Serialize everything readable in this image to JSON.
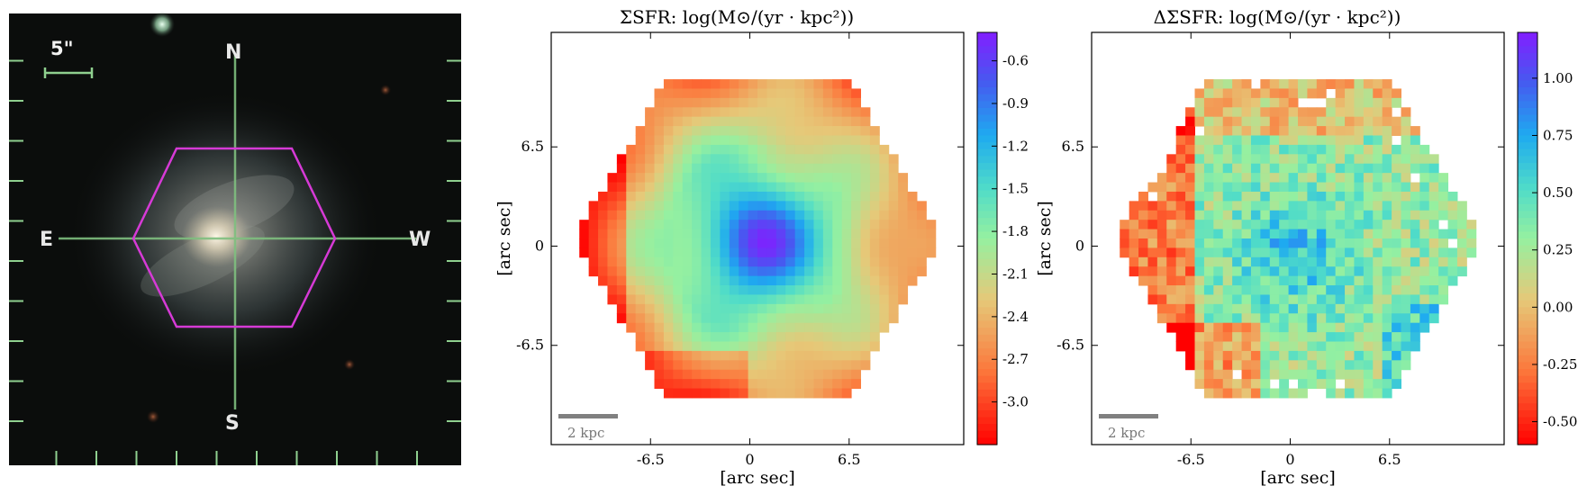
{
  "sky_image": {
    "scale_label": "5\"",
    "compass": {
      "north": "N",
      "south": "S",
      "east": "E",
      "west": "W"
    },
    "colors": {
      "hexagon": "#d63ad6",
      "crosshair": "#7fbf7f",
      "ticks": "#8fd08f"
    }
  },
  "maps": [
    {
      "title": "ΣSFR: log(M⊙/(yr · kpc²))",
      "colorbar_ticks": [
        "-0.6",
        "-0.9",
        "-1.2",
        "-1.5",
        "-1.8",
        "-2.1",
        "-2.4",
        "-2.7",
        "-3.0"
      ],
      "scale_bar_label": "2 kpc"
    },
    {
      "title": "ΔΣSFR: log(M⊙/(yr · kpc²))",
      "colorbar_ticks": [
        "1.00",
        "0.75",
        "0.50",
        "0.25",
        "0.00",
        "-0.25",
        "-0.50"
      ],
      "scale_bar_label": "2 kpc"
    }
  ],
  "chart_data": [
    {
      "type": "heatmap",
      "title": "ΣSFR: log(M⊙/(yr · kpc²))",
      "xlabel": "[arc sec]",
      "ylabel": "[arc sec]",
      "xticks": [
        -6.5,
        0,
        6.5
      ],
      "yticks": [
        6.5,
        0,
        -6.5
      ],
      "xlim": [
        -13,
        14
      ],
      "ylim": [
        -13,
        14
      ],
      "colorbar": {
        "min": -3.3,
        "max": -0.4,
        "ticks": [
          -0.6,
          -0.9,
          -1.2,
          -1.5,
          -1.8,
          -2.1,
          -2.4,
          -2.7,
          -3.0
        ],
        "colormap": "rainbow"
      },
      "features": {
        "center_value": -0.6,
        "outskirt_value": -3.0,
        "center_arcsec": [
          0.5,
          0.5
        ]
      }
    },
    {
      "type": "heatmap",
      "title": "ΔΣSFR: log(M⊙/(yr · kpc²))",
      "xlabel": "[arc sec]",
      "ylabel": "[arc sec]",
      "xticks": [
        -6.5,
        0,
        6.5
      ],
      "yticks": [
        6.5,
        0,
        -6.5
      ],
      "xlim": [
        -13,
        14
      ],
      "ylim": [
        -13,
        14
      ],
      "colorbar": {
        "min": -0.6,
        "max": 1.2,
        "ticks": [
          1.0,
          0.75,
          0.5,
          0.25,
          0.0,
          -0.25,
          -0.5
        ],
        "colormap": "rainbow"
      },
      "features": {
        "center_value": 0.75,
        "outskirt_value": -0.5,
        "center_arcsec": [
          0.5,
          0.5
        ]
      }
    }
  ]
}
